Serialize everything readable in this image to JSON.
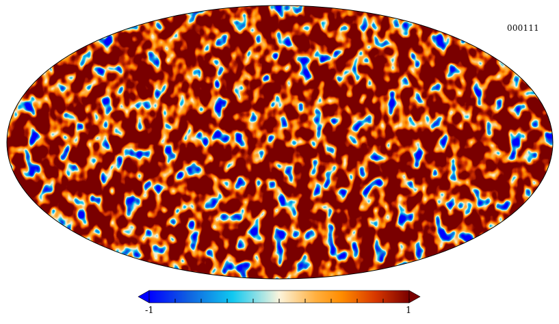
{
  "map": {
    "projection": "mollweide",
    "label": "000111"
  },
  "colorbar": {
    "min_label": "-1",
    "max_label": "1",
    "min": -1,
    "max": 1,
    "stops": [
      "#0000ff",
      "#1060e0",
      "#10c8f0",
      "#fbf4dc",
      "#ffb040",
      "#ff8c00",
      "#d83800",
      "#7a0000"
    ],
    "extend_arrows": [
      "left",
      "right"
    ],
    "orientation": "horizontal"
  }
}
